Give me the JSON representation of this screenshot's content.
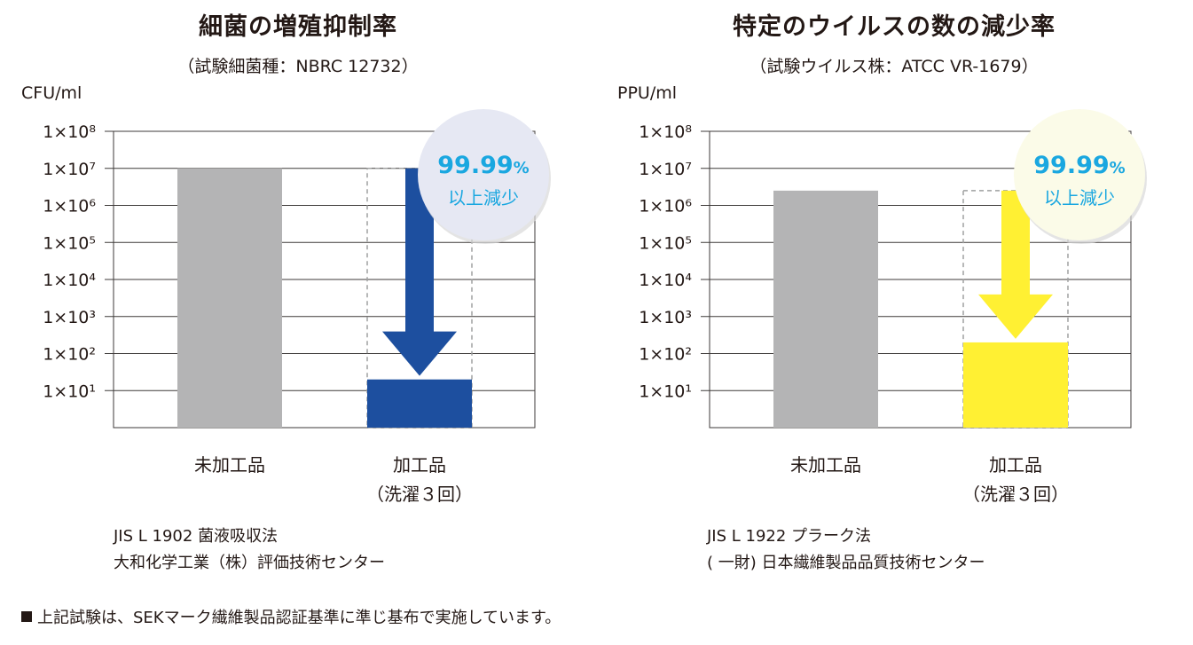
{
  "charts": [
    {
      "title": "細菌の増殖抑制率",
      "subtitle": "（試験細菌種：NBRC 12732）",
      "unit": "CFU/ml",
      "badge_value": "99.99",
      "badge_pct": "%",
      "badge_text": "以上減少",
      "note_lines": [
        "JIS L 1902 菌液吸収法",
        "大和化学工業（株）評価技術センター"
      ]
    },
    {
      "title": "特定のウイルスの数の減少率",
      "subtitle": "（試験ウイルス株：ATCC VR-1679）",
      "unit": "PPU/ml",
      "badge_value": "99.99",
      "badge_pct": "%",
      "badge_text": "以上減少",
      "note_lines": [
        "JIS L 1922 プラーク法",
        "( 一財) 日本繊維製品品質技術センター"
      ]
    }
  ],
  "chart_data": [
    {
      "type": "bar",
      "title": "細菌の増殖抑制率",
      "ylabel": "CFU/ml",
      "yscale": "log",
      "ylim": [
        1,
        100000000
      ],
      "yticks": [
        {
          "exp": 1,
          "label": "1×10¹"
        },
        {
          "exp": 2,
          "label": "1×10²"
        },
        {
          "exp": 3,
          "label": "1×10³"
        },
        {
          "exp": 4,
          "label": "1×10⁴"
        },
        {
          "exp": 5,
          "label": "1×10⁵"
        },
        {
          "exp": 6,
          "label": "1×10⁶"
        },
        {
          "exp": 7,
          "label": "1×10⁷"
        },
        {
          "exp": 8,
          "label": "1×10⁸"
        }
      ],
      "categories": [
        [
          "未加工品"
        ],
        [
          "加工品",
          "（洗濯３回）"
        ]
      ],
      "values": [
        10000000,
        20
      ],
      "reference_value": 10000000,
      "colors": {
        "untreated": "#b4b4b5",
        "treated": "#1d4f9f",
        "badge_bg": "#e6e8f3",
        "badge_text": "#1aa7e0"
      },
      "grid": true
    },
    {
      "type": "bar",
      "title": "特定のウイルスの数の減少率",
      "ylabel": "PPU/ml",
      "yscale": "log",
      "ylim": [
        1,
        100000000
      ],
      "yticks": [
        {
          "exp": 1,
          "label": "1×10¹"
        },
        {
          "exp": 2,
          "label": "1×10²"
        },
        {
          "exp": 3,
          "label": "1×10³"
        },
        {
          "exp": 4,
          "label": "1×10⁴"
        },
        {
          "exp": 5,
          "label": "1×10⁵"
        },
        {
          "exp": 6,
          "label": "1×10⁶"
        },
        {
          "exp": 7,
          "label": "1×10⁷"
        },
        {
          "exp": 8,
          "label": "1×10⁸"
        }
      ],
      "categories": [
        [
          "未加工品"
        ],
        [
          "加工品",
          "（洗濯３回）"
        ]
      ],
      "values": [
        2500000,
        200
      ],
      "reference_value": 2500000,
      "colors": {
        "untreated": "#b4b4b5",
        "treated": "#fff033",
        "badge_bg": "#fbfbe8",
        "badge_text": "#1aa7e0"
      },
      "grid": true
    }
  ],
  "footnote": "上記試験は、SEKマーク繊維製品認証基準に準じ基布で実施しています。"
}
